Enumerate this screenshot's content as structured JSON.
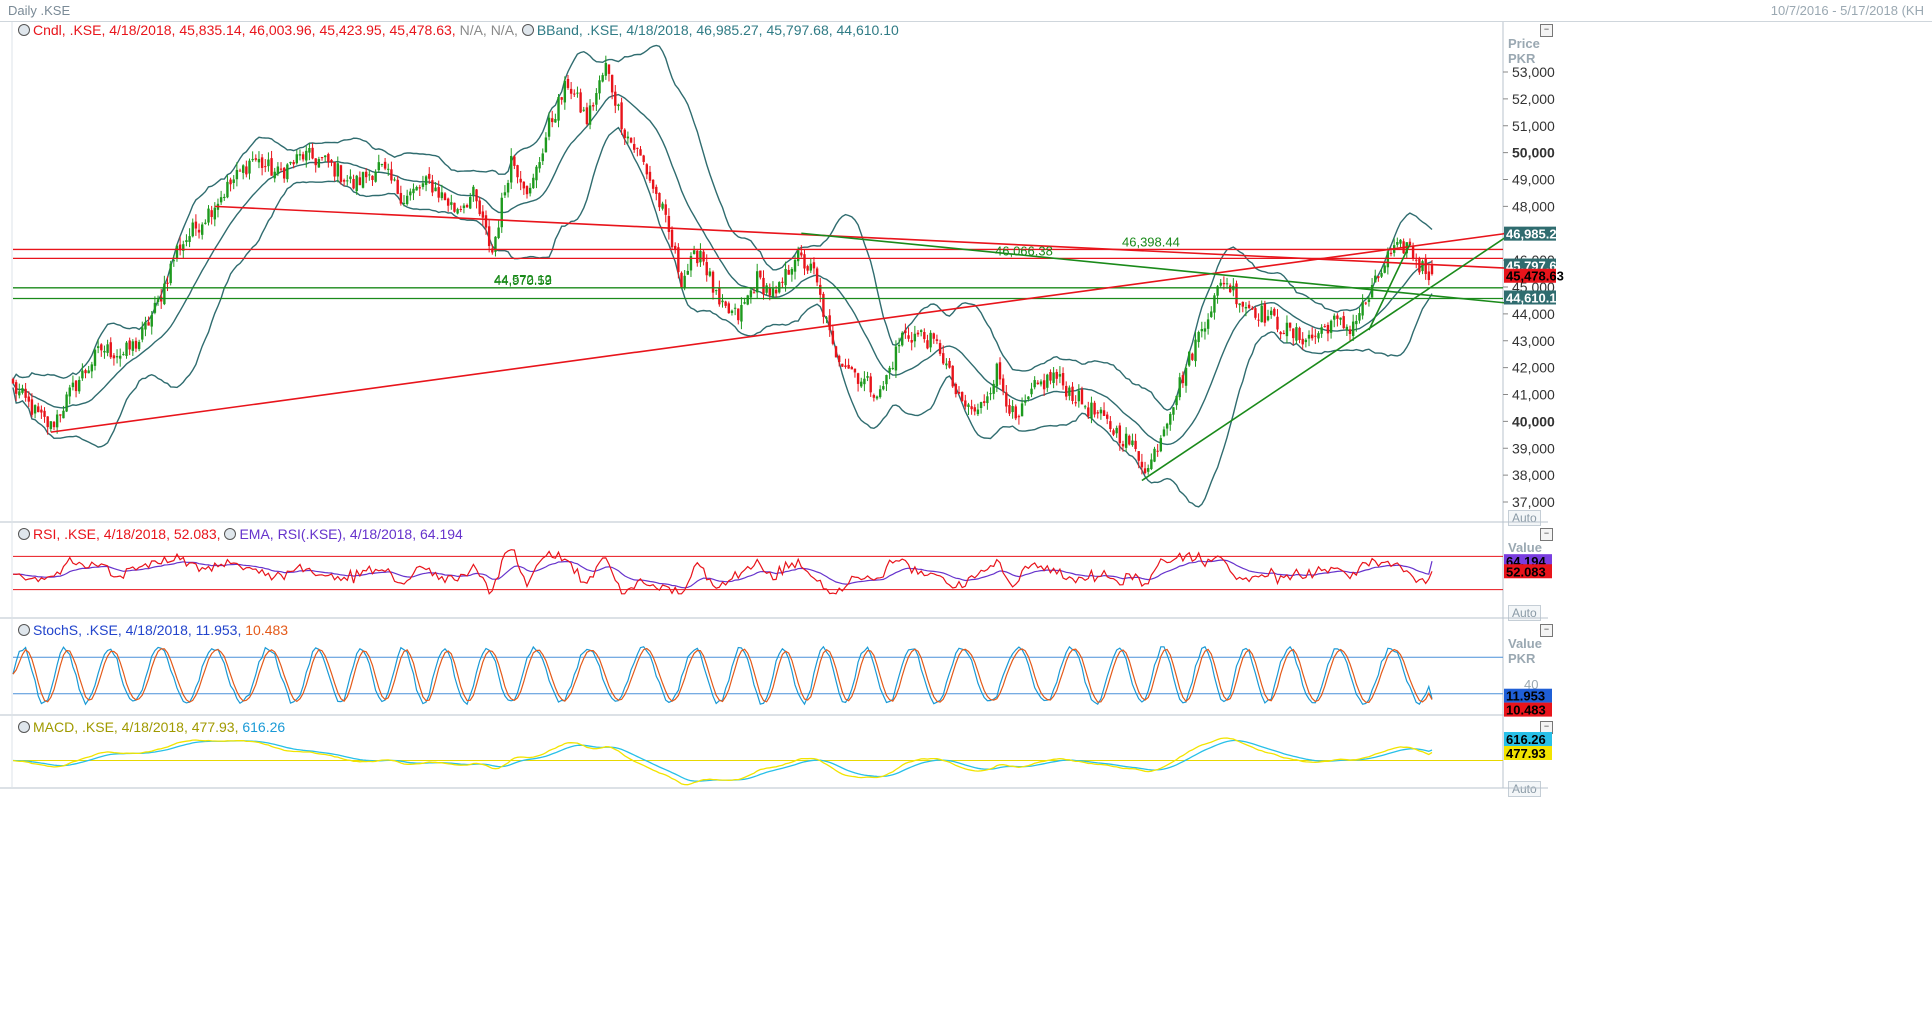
{
  "window": {
    "title": "Daily .KSE",
    "date_range": "10/7/2016 - 5/17/2018 (KH"
  },
  "legends": {
    "candles": {
      "label": "Cndl, .KSE, 4/18/2018, 45,835.14, 46,003.96, 45,423.95, 45,478.63,",
      "extra": "N/A, N/A,"
    },
    "bband": {
      "label": "BBand, .KSE, 4/18/2018, 46,985.27, 45,797.68, 44,610.10"
    },
    "rsi": {
      "label": "RSI, .KSE, 4/18/2018, 52.083,",
      "ema": "EMA, RSI(.KSE), 4/18/2018, 64.194"
    },
    "stoch": {
      "label": "StochS, .KSE, 4/18/2018, 11.953,",
      "value2": "10.483"
    },
    "macd": {
      "label": "MACD, .KSE, 4/18/2018, 477.93,",
      "value2": "616.26"
    }
  },
  "axes": {
    "price_title": [
      "Price",
      "PKR"
    ],
    "price_ticks": [
      "53,000",
      "52,000",
      "51,000",
      "50,000",
      "49,000",
      "48,000",
      "47,000",
      "46,000",
      "45,000",
      "44,000",
      "43,000",
      "42,000",
      "41,000",
      "40,000",
      "39,000",
      "38,000",
      "37,000"
    ],
    "rsi_title": [
      "Value"
    ],
    "stoch_title": [
      "Value",
      "PKR"
    ],
    "stoch_tick": "40",
    "auto_label": "Auto"
  },
  "price_tags": {
    "bb_upper": "46,985.27",
    "bb_mid": "45,797.68",
    "close": "45,478.63",
    "bb_lower": "44,610.10",
    "rsi_ema": "64.194",
    "rsi": "52.083",
    "stoch_k": "11.953",
    "stoch_d": "10.483",
    "macd_signal": "616.26",
    "macd": "477.93"
  },
  "annotations": {
    "h1": "46,398.44",
    "h2": "46,066.38",
    "g1": "44,970.59",
    "g2": "44,572.12"
  },
  "chart_data": {
    "type": "candlestick",
    "title": "Daily .KSE",
    "x_range": [
      "10/7/2016",
      "5/17/2018"
    ],
    "y_label": "Price PKR",
    "ylim": [
      36500,
      54000
    ],
    "last_bar": {
      "date": "4/18/2018",
      "open": 45835.14,
      "high": 46003.96,
      "low": 45423.95,
      "close": 45478.63
    },
    "bollinger": {
      "upper": 46985.27,
      "middle": 45797.68,
      "lower": 44610.1
    },
    "anchors": [
      [
        0,
        41300
      ],
      [
        8,
        40200
      ],
      [
        12,
        39800
      ],
      [
        20,
        41400
      ],
      [
        28,
        42700
      ],
      [
        35,
        42500
      ],
      [
        40,
        43000
      ],
      [
        46,
        44400
      ],
      [
        52,
        46400
      ],
      [
        60,
        47500
      ],
      [
        68,
        48700
      ],
      [
        76,
        49800
      ],
      [
        84,
        49200
      ],
      [
        92,
        49900
      ],
      [
        100,
        49600
      ],
      [
        108,
        48800
      ],
      [
        116,
        49500
      ],
      [
        124,
        48300
      ],
      [
        132,
        48900
      ],
      [
        140,
        47900
      ],
      [
        146,
        48400
      ],
      [
        152,
        46300
      ],
      [
        158,
        49800
      ],
      [
        164,
        48500
      ],
      [
        170,
        51000
      ],
      [
        176,
        52600
      ],
      [
        182,
        51200
      ],
      [
        188,
        53200
      ],
      [
        194,
        50800
      ],
      [
        200,
        49600
      ],
      [
        206,
        47800
      ],
      [
        212,
        45300
      ],
      [
        218,
        46400
      ],
      [
        224,
        44200
      ],
      [
        230,
        43900
      ],
      [
        236,
        45300
      ],
      [
        242,
        44600
      ],
      [
        248,
        46200
      ],
      [
        254,
        45500
      ],
      [
        260,
        42700
      ],
      [
        268,
        41700
      ],
      [
        275,
        41000
      ],
      [
        282,
        43200
      ],
      [
        288,
        43200
      ],
      [
        294,
        42700
      ],
      [
        300,
        40700
      ],
      [
        306,
        40300
      ],
      [
        312,
        41900
      ],
      [
        318,
        39900
      ],
      [
        324,
        41200
      ],
      [
        330,
        41700
      ],
      [
        338,
        40800
      ],
      [
        346,
        40000
      ],
      [
        354,
        39200
      ],
      [
        360,
        38200
      ],
      [
        366,
        40200
      ],
      [
        372,
        42000
      ],
      [
        378,
        43800
      ],
      [
        384,
        45300
      ],
      [
        390,
        44400
      ],
      [
        398,
        43900
      ],
      [
        406,
        43200
      ],
      [
        412,
        43100
      ],
      [
        418,
        43700
      ],
      [
        424,
        43500
      ],
      [
        430,
        44600
      ],
      [
        436,
        46100
      ],
      [
        442,
        46600
      ],
      [
        446,
        45800
      ],
      [
        450,
        45480
      ]
    ],
    "trendlines": [
      {
        "name": "h1",
        "value": 46398.44,
        "style": "horizontal"
      },
      {
        "name": "h2",
        "value": 46066.38,
        "style": "horizontal"
      },
      {
        "name": "g1",
        "value": 44970.59,
        "style": "horizontal"
      },
      {
        "name": "g2",
        "value": 44572.12,
        "style": "horizontal"
      }
    ],
    "indicators": {
      "rsi": {
        "value": 52.083,
        "ema": 64.194
      },
      "stochastic": {
        "k": 11.953,
        "d": 10.483
      },
      "macd": {
        "macd": 477.93,
        "signal": 616.26
      }
    }
  },
  "colors": {
    "up": "#1e9a1e",
    "down": "#e8141b",
    "band": "#2f6c6f",
    "trend_red": "#e8141b",
    "trend_green": "#1a8a1a",
    "rsi": "#e8141b",
    "rsi_ema": "#6633cc",
    "stoch_k": "#1a9ad6",
    "stoch_d": "#e45a1a",
    "macd": "#f2e400",
    "macd_signal": "#28c0e8"
  }
}
